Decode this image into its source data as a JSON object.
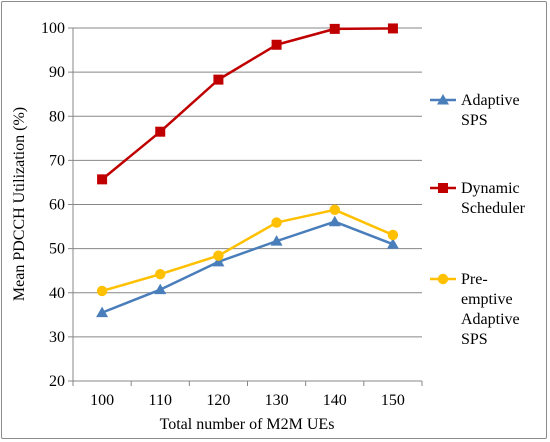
{
  "chart_data": {
    "type": "line",
    "title": "",
    "xlabel": "Total number of M2M UEs",
    "ylabel": "Mean PDCCH Utilization (%)",
    "x": [
      100,
      110,
      120,
      130,
      140,
      150
    ],
    "ylim": [
      20,
      100
    ],
    "yticks": [
      20,
      30,
      40,
      50,
      60,
      70,
      80,
      90,
      100
    ],
    "grid": "horizontal",
    "legend_position": "right",
    "series": [
      {
        "name_lines": [
          "Adaptive",
          "SPS"
        ],
        "marker": "triangle",
        "color": "#4a7ebb",
        "values": [
          35.5,
          40.7,
          47.0,
          51.7,
          56.1,
          51.0
        ]
      },
      {
        "name_lines": [
          "Dynamic",
          "Scheduler"
        ],
        "marker": "square",
        "color": "#c00000",
        "values": [
          65.7,
          76.5,
          88.3,
          96.2,
          99.8,
          99.9
        ]
      },
      {
        "name_lines": [
          "Pre-",
          "emptive",
          "Adaptive",
          "SPS"
        ],
        "marker": "circle",
        "color": "#ffc000",
        "values": [
          40.4,
          44.2,
          48.4,
          55.9,
          58.8,
          53.1
        ]
      }
    ]
  }
}
